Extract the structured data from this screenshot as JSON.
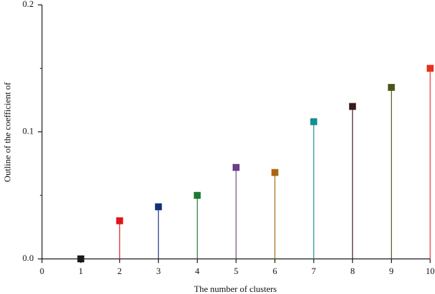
{
  "chart_data": {
    "type": "stem",
    "xlabel": "The number of clusters",
    "ylabel": "Outline of the coefficient of",
    "x": [
      1,
      2,
      3,
      4,
      5,
      6,
      7,
      8,
      9,
      10
    ],
    "values": [
      0,
      0.03,
      0.041,
      0.05,
      0.072,
      0.068,
      0.108,
      0.12,
      0.135,
      0.15
    ],
    "colors": [
      "#1a1a1a",
      "#e0141b",
      "#12307a",
      "#1b7a30",
      "#6b3f8c",
      "#a8650e",
      "#14908f",
      "#3a1a1a",
      "#4d5218",
      "#e8301e"
    ],
    "xlim": [
      0,
      10
    ],
    "xticks": [
      0,
      1,
      2,
      3,
      4,
      5,
      6,
      7,
      8,
      9,
      10
    ],
    "ylim": [
      0,
      0.2
    ],
    "yticks": [
      {
        "value": 0,
        "label": "0.0"
      },
      {
        "value": 0.1,
        "label": "0.1"
      },
      {
        "value": 0.2,
        "label": "0.2"
      }
    ],
    "yminorticks": [
      0.05,
      0.15
    ]
  }
}
